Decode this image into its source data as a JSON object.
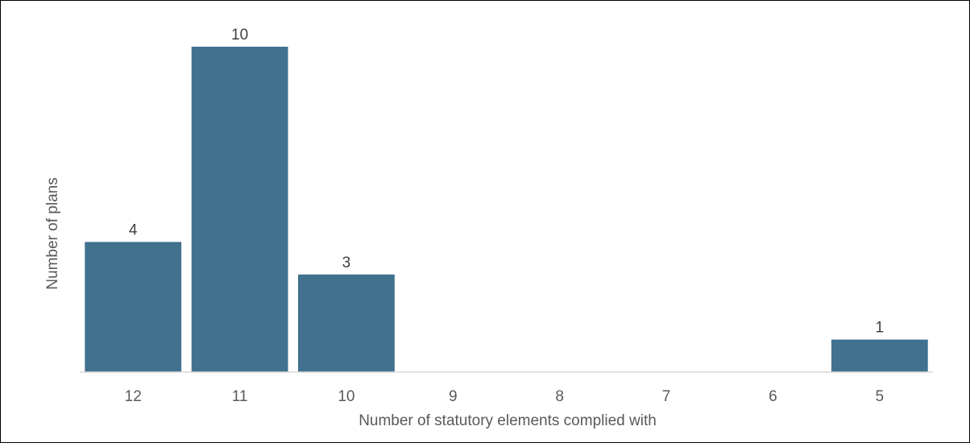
{
  "chart_data": {
    "type": "bar",
    "title": "",
    "xlabel": "Number of statutory elements complied with",
    "ylabel": "Number of plans",
    "categories": [
      "12",
      "11",
      "10",
      "9",
      "8",
      "7",
      "6",
      "5"
    ],
    "values": [
      4,
      10,
      3,
      0,
      0,
      0,
      0,
      1
    ],
    "data_labels": [
      "4",
      "10",
      "3",
      "",
      "",
      "",
      "",
      "1"
    ],
    "ylim": [
      0,
      10
    ],
    "grid": false,
    "legend": "none",
    "colors": {
      "bar": "#41718f",
      "axis": "#d9d9d9",
      "text": "#595959",
      "label": "#404040"
    }
  }
}
